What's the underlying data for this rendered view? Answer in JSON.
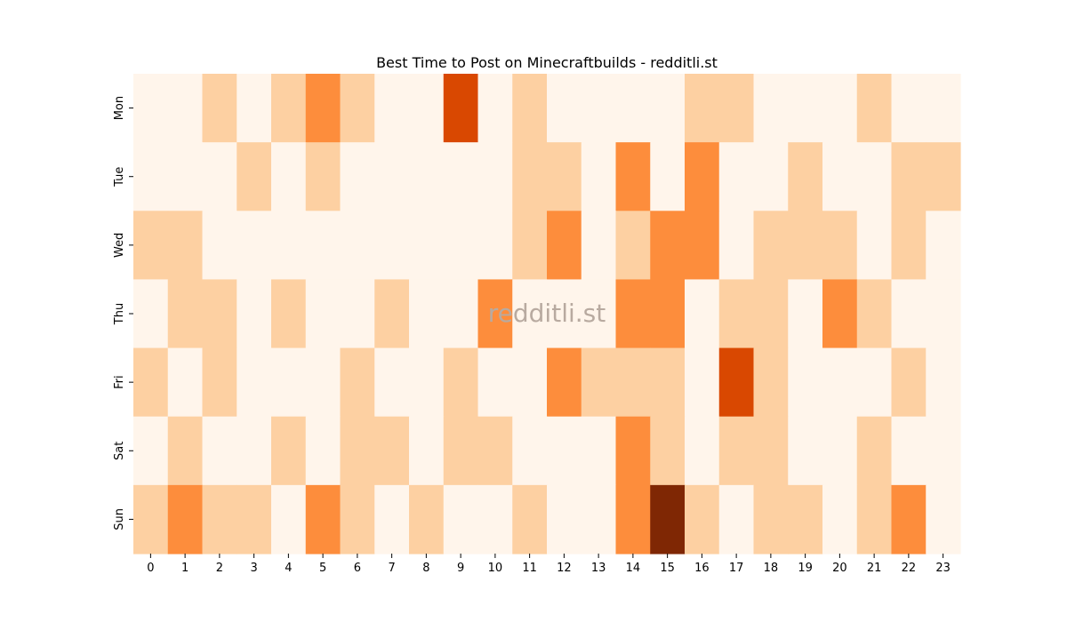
{
  "chart_data": {
    "type": "heatmap",
    "title": "Best Time to Post on Minecraftbuilds - redditli.st",
    "watermark": "redditli.st",
    "x_categories": [
      "0",
      "1",
      "2",
      "3",
      "4",
      "5",
      "6",
      "7",
      "8",
      "9",
      "10",
      "11",
      "12",
      "13",
      "14",
      "15",
      "16",
      "17",
      "18",
      "19",
      "20",
      "21",
      "22",
      "23"
    ],
    "y_categories": [
      "Mon",
      "Tue",
      "Wed",
      "Thu",
      "Fri",
      "Sat",
      "Sun"
    ],
    "values": [
      [
        0,
        0,
        1,
        0,
        1,
        2,
        1,
        0,
        0,
        4,
        0,
        1,
        0,
        0,
        0,
        0,
        1,
        1,
        0,
        0,
        0,
        1,
        0,
        0
      ],
      [
        0,
        0,
        0,
        1,
        0,
        1,
        0,
        0,
        0,
        0,
        0,
        1,
        1,
        0,
        2,
        0,
        2,
        0,
        0,
        1,
        0,
        0,
        1,
        1
      ],
      [
        1,
        1,
        0,
        0,
        0,
        0,
        0,
        0,
        0,
        0,
        0,
        1,
        2,
        0,
        1,
        2,
        2,
        0,
        1,
        1,
        1,
        0,
        1,
        0
      ],
      [
        0,
        1,
        1,
        0,
        1,
        0,
        0,
        1,
        0,
        0,
        2,
        0,
        0,
        0,
        2,
        2,
        0,
        1,
        1,
        0,
        2,
        1,
        0,
        0
      ],
      [
        1,
        0,
        1,
        0,
        0,
        0,
        1,
        0,
        0,
        1,
        0,
        0,
        2,
        1,
        1,
        1,
        0,
        4,
        1,
        0,
        0,
        0,
        1,
        0
      ],
      [
        0,
        1,
        0,
        0,
        1,
        0,
        1,
        1,
        0,
        1,
        1,
        0,
        0,
        0,
        2,
        1,
        0,
        1,
        1,
        0,
        0,
        1,
        0,
        0
      ],
      [
        1,
        2,
        1,
        1,
        0,
        2,
        1,
        0,
        1,
        0,
        0,
        1,
        0,
        0,
        2,
        6,
        1,
        0,
        1,
        1,
        0,
        1,
        2,
        0
      ]
    ],
    "value_range": [
      0,
      6
    ],
    "colors": {
      "0": "#fff5eb",
      "1": "#fdd0a2",
      "2": "#fd8d3c",
      "4": "#d94801",
      "6": "#7f2704"
    },
    "colormap": "Oranges",
    "colorbar": false,
    "grid": false
  }
}
